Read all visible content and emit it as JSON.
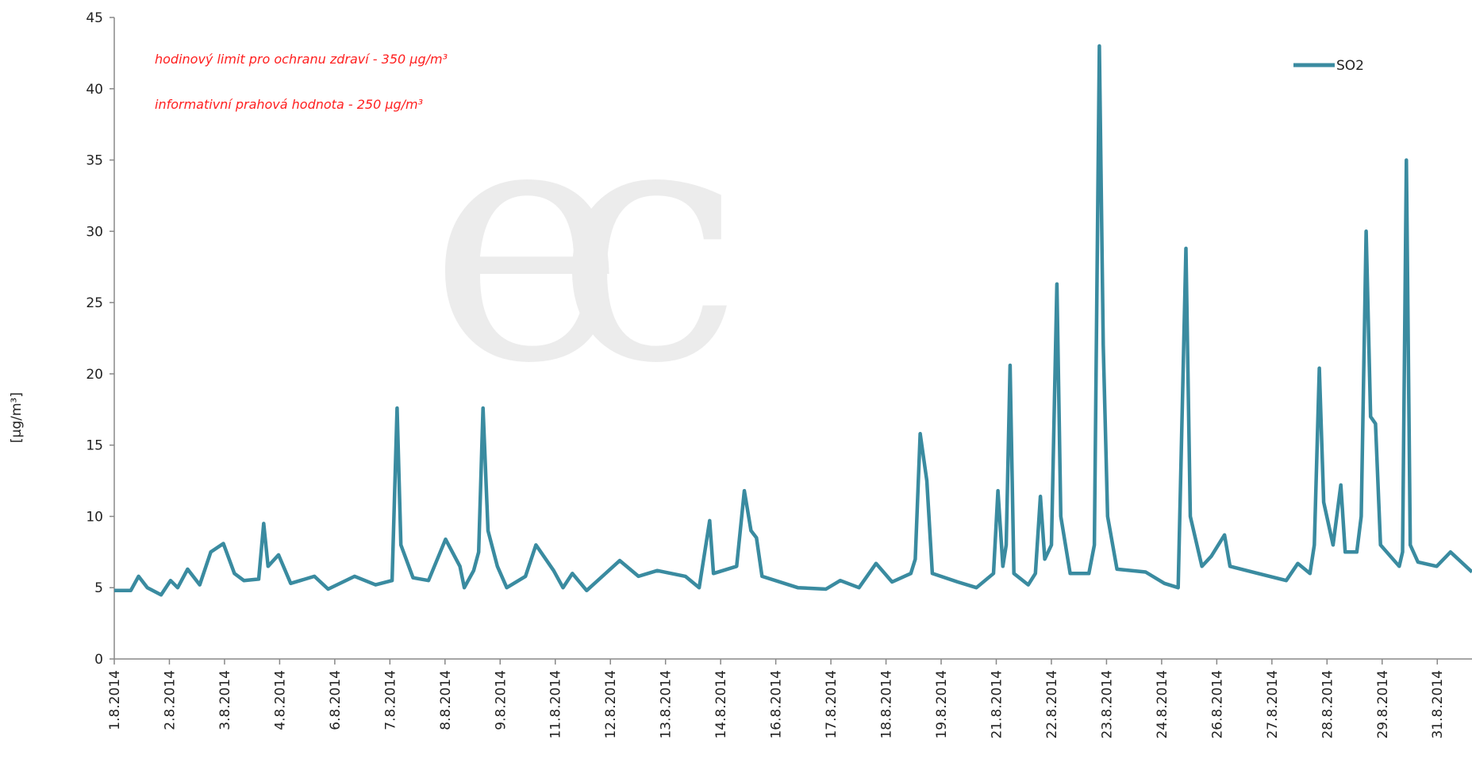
{
  "chart_data": {
    "type": "line",
    "y_label": "[µg/m³]",
    "annotations": [
      "hodinový  limit pro ochranu zdraví  - 350 µg/m³",
      "informativní  prahová  hodnota  - 250 µg/m³"
    ],
    "xlim": [
      0,
      24.63
    ],
    "xticks": [
      {
        "value": 0,
        "label": "1.8.2014"
      },
      {
        "value": 1,
        "label": "2.8.2014"
      },
      {
        "value": 2,
        "label": "3.8.2014"
      },
      {
        "value": 3,
        "label": "4.8.2014"
      },
      {
        "value": 4,
        "label": "6.8.2014"
      },
      {
        "value": 5,
        "label": "7.8.2014"
      },
      {
        "value": 6,
        "label": "8.8.2014"
      },
      {
        "value": 7,
        "label": "9.8.2014"
      },
      {
        "value": 8,
        "label": "11.8.2014"
      },
      {
        "value": 9,
        "label": "12.8.2014"
      },
      {
        "value": 10,
        "label": "13.8.2014"
      },
      {
        "value": 11,
        "label": "14.8.2014"
      },
      {
        "value": 12,
        "label": "16.8.2014"
      },
      {
        "value": 13,
        "label": "17.8.2014"
      },
      {
        "value": 14,
        "label": "18.8.2014"
      },
      {
        "value": 15,
        "label": "19.8.2014"
      },
      {
        "value": 16,
        "label": "21.8.2014"
      },
      {
        "value": 17,
        "label": "22.8.2014"
      },
      {
        "value": 18,
        "label": "23.8.2014"
      },
      {
        "value": 19,
        "label": "24.8.2014"
      },
      {
        "value": 20,
        "label": "26.8.2014"
      },
      {
        "value": 21,
        "label": "27.8.2014"
      },
      {
        "value": 22,
        "label": "28.8.2014"
      },
      {
        "value": 23,
        "label": "29.8.2014"
      },
      {
        "value": 24,
        "label": "31.8.2014"
      }
    ],
    "ylim": [
      0,
      45
    ],
    "yticks": [
      0,
      5,
      10,
      15,
      20,
      25,
      30,
      35,
      40,
      45
    ],
    "grid": false,
    "legend": "top-right",
    "x": [
      0,
      0.3,
      0.44,
      0.6,
      0.85,
      1.02,
      1.15,
      1.33,
      1.55,
      1.75,
      1.98,
      2.18,
      2.35,
      2.62,
      2.71,
      2.79,
      2.98,
      3.2,
      3.63,
      3.88,
      4.36,
      4.74,
      5.04,
      5.13,
      5.2,
      5.42,
      5.7,
      6.01,
      6.27,
      6.35,
      6.52,
      6.61,
      6.69,
      6.78,
      6.95,
      7.12,
      7.46,
      7.65,
      7.97,
      8.14,
      8.31,
      8.57,
      9.17,
      9.51,
      9.85,
      10.36,
      10.61,
      10.8,
      10.87,
      11.29,
      11.43,
      11.55,
      11.65,
      11.75,
      12.4,
      12.91,
      13.17,
      13.51,
      13.82,
      14.11,
      14.45,
      14.53,
      14.62,
      14.74,
      14.84,
      15.3,
      15.64,
      15.95,
      16.03,
      16.12,
      16.18,
      16.25,
      16.32,
      16.58,
      16.71,
      16.8,
      16.88,
      17.0,
      17.1,
      17.17,
      17.34,
      17.68,
      17.78,
      17.87,
      17.94,
      18.02,
      18.19,
      18.71,
      19.05,
      19.3,
      19.44,
      19.52,
      19.73,
      19.9,
      20.14,
      20.24,
      20.75,
      21.26,
      21.47,
      21.69,
      21.77,
      21.86,
      21.94,
      22.11,
      22.25,
      22.33,
      22.54,
      22.62,
      22.71,
      22.79,
      22.88,
      22.97,
      23.31,
      23.37,
      23.44,
      23.51,
      23.65,
      23.99,
      24.24,
      24.63
    ],
    "series": [
      {
        "name": "SO2",
        "color": "#3a8ba0",
        "values": [
          4.8,
          4.8,
          5.8,
          5.0,
          4.5,
          5.5,
          5.0,
          6.3,
          5.2,
          7.5,
          8.1,
          6.0,
          5.5,
          5.6,
          9.5,
          6.5,
          7.3,
          5.3,
          5.8,
          4.9,
          5.8,
          5.2,
          5.5,
          17.6,
          8.0,
          5.7,
          5.5,
          8.4,
          6.5,
          5.0,
          6.2,
          7.5,
          17.6,
          9.0,
          6.5,
          5.0,
          5.8,
          8.0,
          6.2,
          5.0,
          6.0,
          4.8,
          6.9,
          5.8,
          6.2,
          5.8,
          5.0,
          9.7,
          6.0,
          6.5,
          11.8,
          9.0,
          8.5,
          5.8,
          5.0,
          4.9,
          5.5,
          5.0,
          6.7,
          5.4,
          6.0,
          7.0,
          15.8,
          12.5,
          6.0,
          5.4,
          5.0,
          6.0,
          11.8,
          6.5,
          8.0,
          20.6,
          6.0,
          5.2,
          6.0,
          11.4,
          7.0,
          8.0,
          26.3,
          10.0,
          6.0,
          6.0,
          8.0,
          43,
          22,
          10,
          6.3,
          6.1,
          5.3,
          5.0,
          28.8,
          10,
          6.5,
          7.2,
          8.7,
          6.5,
          6.0,
          5.5,
          6.7,
          6.0,
          8.0,
          20.4,
          11,
          8.0,
          12.2,
          7.5,
          7.5,
          10,
          30,
          17,
          16.5,
          8.0,
          6.5,
          7.5,
          35,
          8.0,
          6.8,
          6.5,
          7.5,
          6.1
        ]
      }
    ]
  }
}
